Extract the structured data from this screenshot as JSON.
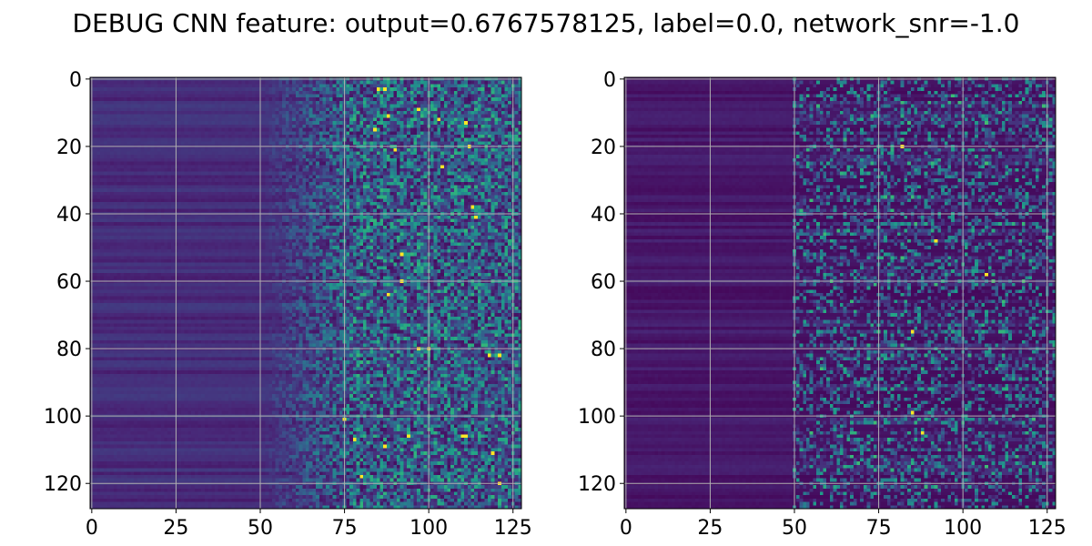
{
  "figure": {
    "title": "DEBUG CNN feature: output=0.6767578125, label=0.0, network_snr=-1.0"
  },
  "chart_data": [
    {
      "type": "heatmap",
      "title": "",
      "xlabel": "",
      "ylabel": "",
      "rows": 128,
      "cols": 128,
      "xlim": [
        -0.5,
        127.5
      ],
      "ylim": [
        127.5,
        -0.5
      ],
      "x_ticks": [
        0,
        25,
        50,
        75,
        100,
        125
      ],
      "y_ticks": [
        0,
        20,
        40,
        60,
        80,
        100,
        120
      ],
      "x_tick_labels": [
        "0",
        "25",
        "50",
        "75",
        "100",
        "125"
      ],
      "y_tick_labels": [
        "0",
        "20",
        "40",
        "60",
        "80",
        "100",
        "120"
      ],
      "grid": true,
      "colormap": "viridis",
      "pattern": "Columns 0-49 uniform dark purple-blue with horizontal row banding; columns 50-75 gradual transition to noisier teal; columns 75-127 highly noisy with scattered green and yellow bright pixels",
      "hotspots": [
        [
          3,
          85
        ],
        [
          11,
          88
        ],
        [
          9,
          97
        ],
        [
          12,
          103
        ],
        [
          13,
          111
        ],
        [
          20,
          112
        ],
        [
          21,
          90
        ],
        [
          26,
          104
        ],
        [
          38,
          113
        ],
        [
          41,
          114
        ],
        [
          52,
          92
        ],
        [
          60,
          92
        ],
        [
          64,
          88
        ],
        [
          80,
          97
        ],
        [
          80,
          100
        ],
        [
          82,
          118
        ],
        [
          82,
          121
        ],
        [
          101,
          75
        ],
        [
          106,
          94
        ],
        [
          107,
          78
        ],
        [
          106,
          110
        ],
        [
          106,
          111
        ],
        [
          109,
          87
        ],
        [
          111,
          119
        ],
        [
          118,
          80
        ],
        [
          120,
          121
        ],
        [
          3,
          87
        ],
        [
          15,
          84
        ]
      ]
    },
    {
      "type": "heatmap",
      "title": "",
      "xlabel": "",
      "ylabel": "",
      "rows": 128,
      "cols": 128,
      "xlim": [
        -0.5,
        127.5
      ],
      "ylim": [
        127.5,
        -0.5
      ],
      "x_ticks": [
        0,
        25,
        50,
        75,
        100,
        125
      ],
      "y_ticks": [
        0,
        20,
        40,
        60,
        80,
        100,
        120
      ],
      "x_tick_labels": [
        "0",
        "25",
        "50",
        "75",
        "100",
        "125"
      ],
      "y_tick_labels": [
        "0",
        "20",
        "40",
        "60",
        "80",
        "100",
        "120"
      ],
      "grid": true,
      "colormap": "viridis",
      "pattern": "Mostly dark purple background; columns 0-49 dark with faint horizontal row banding; columns 50-127 sparse scattered teal and green pixels with horizontal streaks, few bright yellow points",
      "hotspots": [
        [
          20,
          82
        ],
        [
          75,
          85
        ],
        [
          99,
          85
        ],
        [
          105,
          88
        ],
        [
          58,
          107
        ],
        [
          48,
          92
        ]
      ]
    }
  ]
}
